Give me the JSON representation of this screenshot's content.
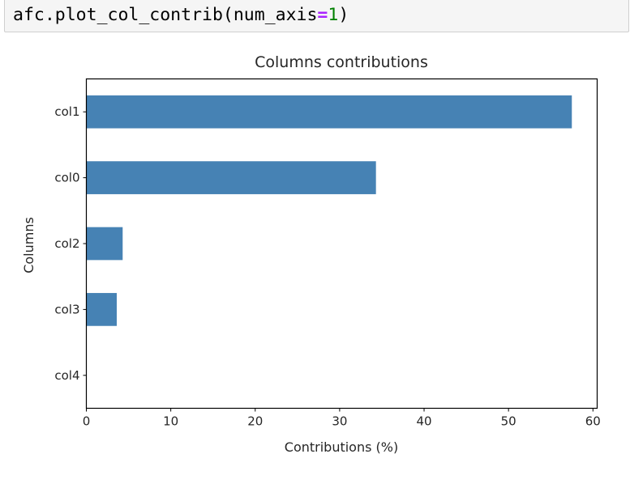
{
  "code_cell": {
    "obj": "afc",
    "dot": ".",
    "method": "plot_col_contrib",
    "open_paren": "(",
    "arg_name": "num_axis",
    "operator": "=",
    "arg_value": "1",
    "close_paren": ")"
  },
  "chart_data": {
    "type": "bar",
    "orientation": "horizontal",
    "title": "Columns contributions",
    "xlabel": "Contributions (%)",
    "ylabel": "Columns",
    "categories": [
      "col1",
      "col0",
      "col2",
      "col3",
      "col4"
    ],
    "values": [
      57.5,
      34.3,
      4.3,
      3.6,
      0.0
    ],
    "xlim": [
      0,
      60.5
    ],
    "xticks": [
      0,
      10,
      20,
      30,
      40,
      50,
      60
    ],
    "bar_color": "#4682b4",
    "grid": false,
    "legend": "none"
  }
}
